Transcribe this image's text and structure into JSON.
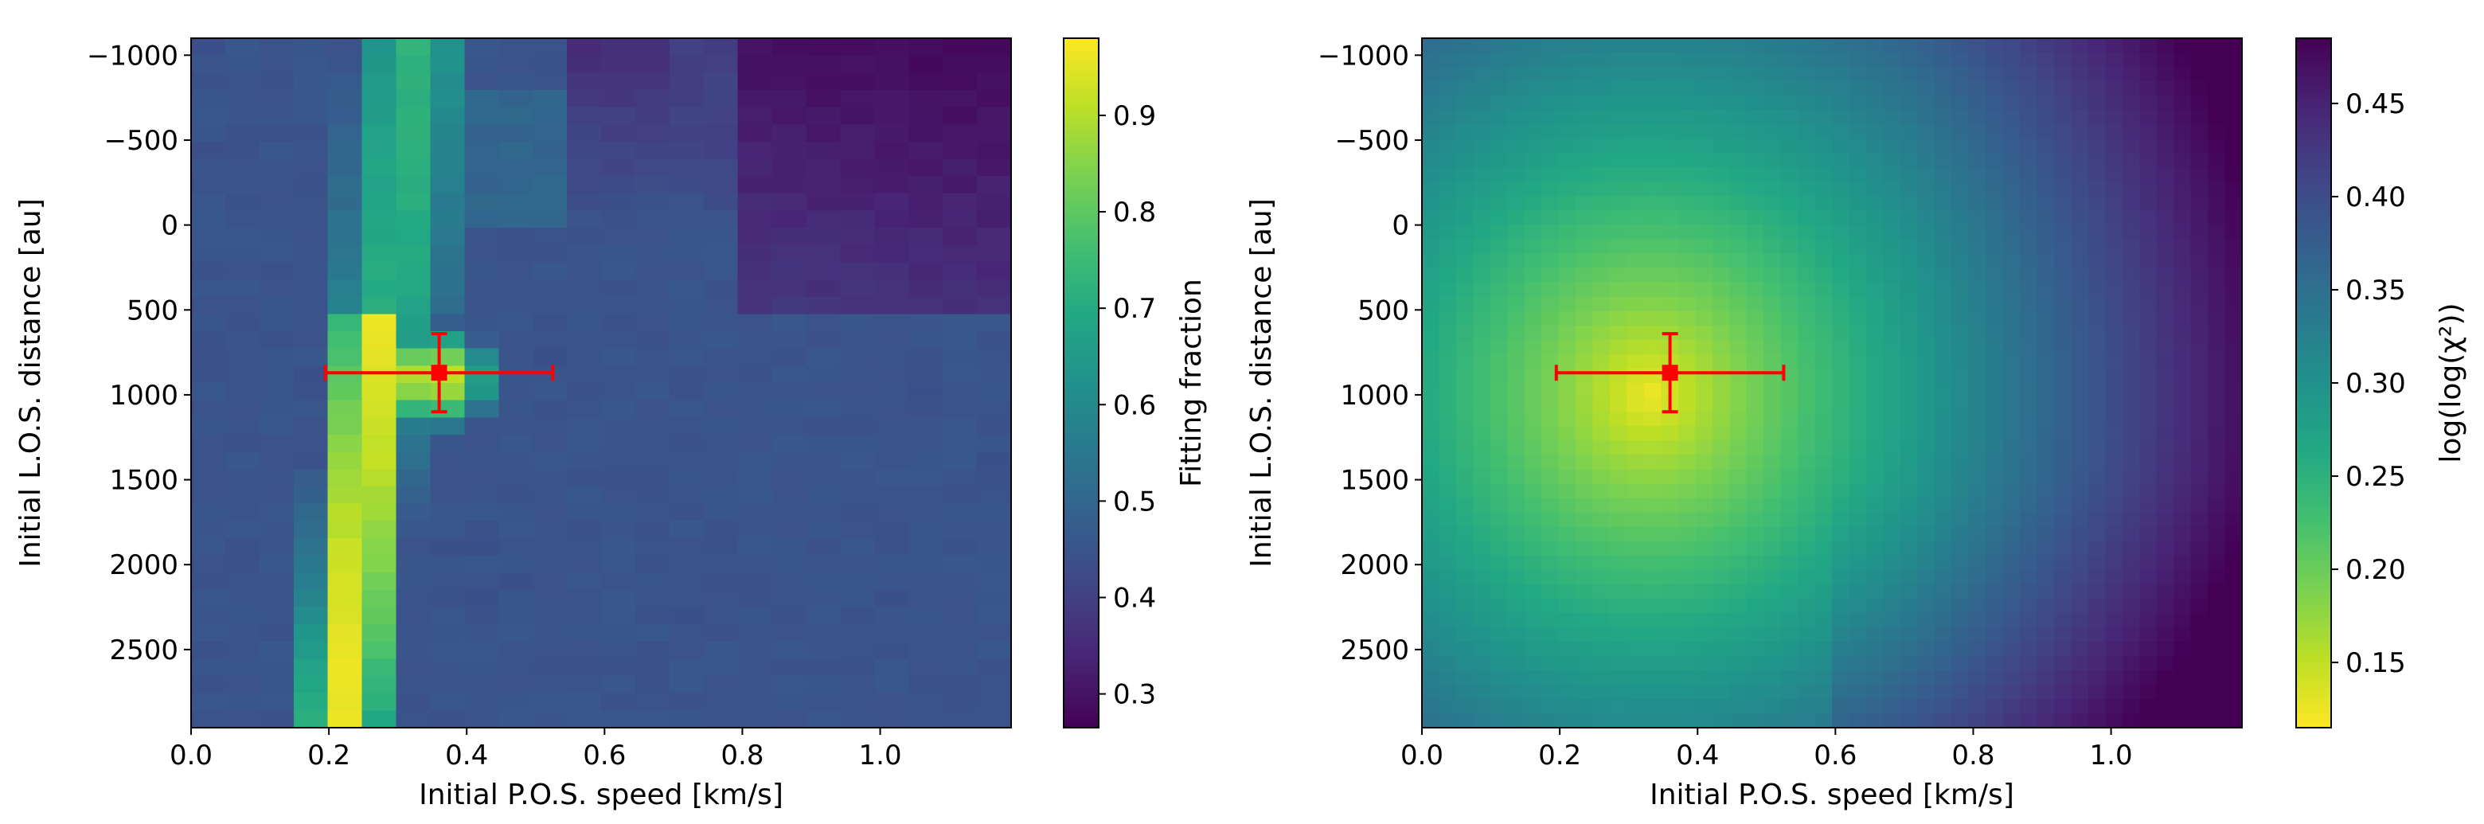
{
  "chart_data": [
    {
      "type": "heatmap",
      "title": "",
      "xlabel": "Initial P.O.S. speed [km/s]",
      "ylabel": "Initial L.O.S. distance [au]",
      "colorbar_label": "Fitting fraction",
      "colormap": "viridis",
      "colormap_reversed": false,
      "xlim": [
        0.0,
        1.19
      ],
      "ylim": [
        2960,
        -1100
      ],
      "xticks": [
        0.0,
        0.2,
        0.4,
        0.6,
        0.8,
        1.0
      ],
      "xtick_labels": [
        "0.0",
        "0.2",
        "0.4",
        "0.6",
        "0.8",
        "1.0"
      ],
      "yticks": [
        -1000,
        -500,
        0,
        500,
        1000,
        1500,
        2000,
        2500
      ],
      "ytick_labels": [
        "−1000",
        "−500",
        "0",
        "500",
        "1000",
        "1500",
        "2000",
        "2500"
      ],
      "clim": [
        0.265,
        0.98
      ],
      "cticks": [
        0.3,
        0.4,
        0.5,
        0.6,
        0.7,
        0.8,
        0.9
      ],
      "ctick_labels": [
        "0.3",
        "0.4",
        "0.5",
        "0.6",
        "0.7",
        "0.8",
        "0.9"
      ],
      "best_fit": {
        "x": 0.36,
        "y": 870,
        "xerr": [
          0.165,
          0.165
        ],
        "yerr": [
          230,
          230
        ],
        "color": "#ff0000"
      },
      "grid": {
        "nx": 24,
        "ny": 40,
        "pattern": "fitting_fraction"
      }
    },
    {
      "type": "heatmap",
      "title": "",
      "xlabel": "Initial P.O.S. speed [km/s]",
      "ylabel": "Initial L.O.S. distance [au]",
      "colorbar_label": "log(log(χ²))",
      "colormap": "viridis",
      "colormap_reversed": true,
      "xlim": [
        0.0,
        1.19
      ],
      "ylim": [
        2960,
        -1100
      ],
      "xticks": [
        0.0,
        0.2,
        0.4,
        0.6,
        0.8,
        1.0
      ],
      "xtick_labels": [
        "0.0",
        "0.2",
        "0.4",
        "0.6",
        "0.8",
        "1.0"
      ],
      "yticks": [
        -1000,
        -500,
        0,
        500,
        1000,
        1500,
        2000,
        2500
      ],
      "ytick_labels": [
        "−1000",
        "−500",
        "0",
        "500",
        "1000",
        "1500",
        "2000",
        "2500"
      ],
      "clim": [
        0.115,
        0.485
      ],
      "cticks": [
        0.15,
        0.2,
        0.25,
        0.3,
        0.35,
        0.4,
        0.45
      ],
      "ctick_labels": [
        "0.15",
        "0.20",
        "0.25",
        "0.30",
        "0.35",
        "0.40",
        "0.45"
      ],
      "best_fit": {
        "x": 0.36,
        "y": 870,
        "xerr": [
          0.165,
          0.165
        ],
        "yerr": [
          230,
          230
        ],
        "color": "#ff0000"
      },
      "grid": {
        "nx": 48,
        "ny": 48,
        "pattern": "log_log_chi2"
      }
    }
  ],
  "colors": {
    "errorbar": "#ff0000",
    "axis": "#000000",
    "background": "#ffffff"
  }
}
